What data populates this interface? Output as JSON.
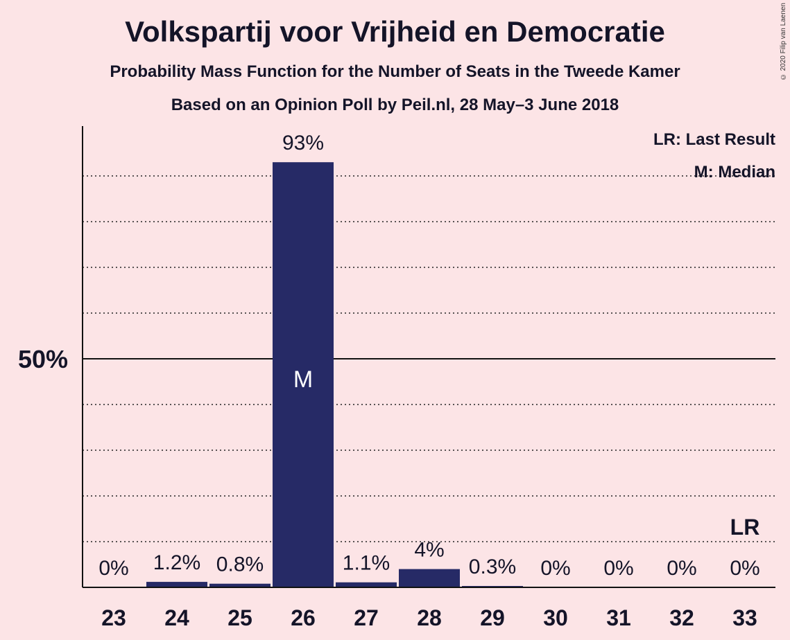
{
  "title": "Volkspartij voor Vrijheid en Democratie",
  "subtitle": "Probability Mass Function for the Number of Seats in the Tweede Kamer",
  "source": "Based on an Opinion Poll by Peil.nl, 28 May–3 June 2018",
  "copyright": "© 2020 Filip van Laenen",
  "legend": {
    "last_result": "LR: Last Result",
    "median": "M: Median"
  },
  "colors": {
    "background": "#fce4e6",
    "bar": "#262a66",
    "text": "#141428"
  },
  "chart_data": {
    "type": "bar",
    "categories": [
      "23",
      "24",
      "25",
      "26",
      "27",
      "28",
      "29",
      "30",
      "31",
      "32",
      "33"
    ],
    "values": [
      0,
      1.2,
      0.8,
      93,
      1.1,
      4,
      0.3,
      0,
      0,
      0,
      0
    ],
    "value_labels": [
      "0%",
      "1.2%",
      "0.8%",
      "93%",
      "1.1%",
      "4%",
      "0.3%",
      "0%",
      "0%",
      "0%",
      "0%"
    ],
    "y_tick_label": "50%",
    "y_tick_value": 50,
    "ylim": [
      0,
      100
    ],
    "gridlines": [
      10,
      20,
      30,
      40,
      60,
      70,
      80,
      90
    ],
    "median_seat": "26",
    "median_marker": "M",
    "last_result_seat": "33",
    "last_result_marker": "LR",
    "xlabel": "",
    "ylabel": ""
  }
}
